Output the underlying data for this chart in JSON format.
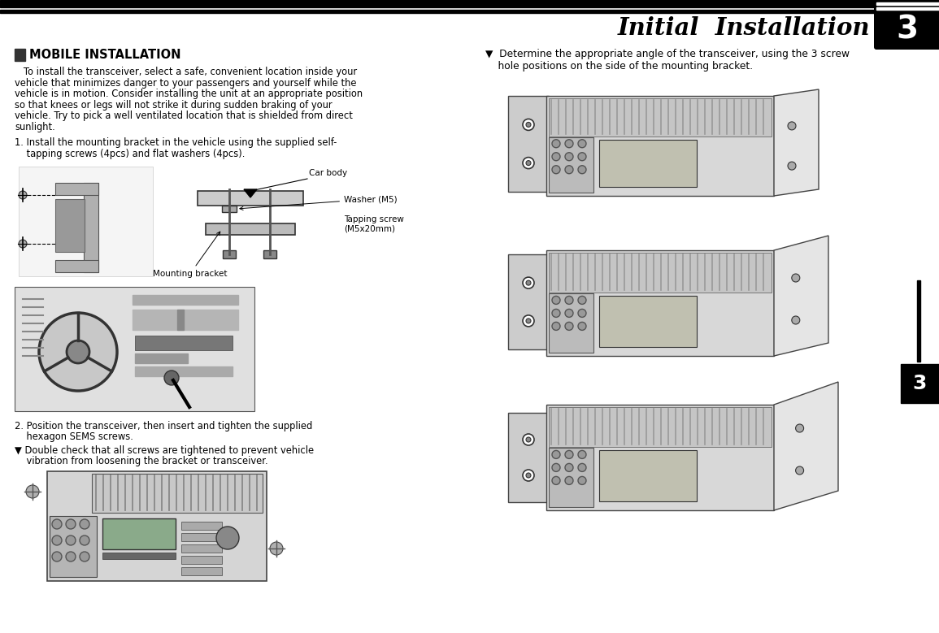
{
  "title": "Initial  Installation",
  "page_number": "3",
  "section_title": "MOBILE INSTALLATION",
  "body_text_lines": [
    "   To install the transceiver, select a safe, convenient location inside your",
    "vehicle that minimizes danger to your passengers and yourself while the",
    "vehicle is in motion. Consider installing the unit at an appropriate position",
    "so that knees or legs will not strike it during sudden braking of your",
    "vehicle. Try to pick a well ventilated location that is shielded from direct",
    "sunlight."
  ],
  "step1_line1": "1. Install the mounting bracket in the vehicle using the supplied self-",
  "step1_line2": "    tapping screws (4pcs) and flat washers (4pcs).",
  "step2_line1": "2. Position the transceiver, then insert and tighten the supplied",
  "step2_line2": "    hexagon SEMS screws.",
  "step2_sub1": "▼ Double check that all screws are tightened to prevent vehicle",
  "step2_sub2": "    vibration from loosening the bracket or transceiver.",
  "label_carbody": "Car body",
  "label_washer": "Washer (M5)",
  "label_tapping": "Tapping screw",
  "label_tapping2": "(M5x20mm)",
  "label_bracket": "Mounting bracket",
  "right_bullet1": "▼  Determine the appropriate angle of the transceiver, using the 3 screw",
  "right_bullet2": "    hole positions on the side of the mounting bracket.",
  "bg_color": "#ffffff",
  "text_color": "#000000"
}
